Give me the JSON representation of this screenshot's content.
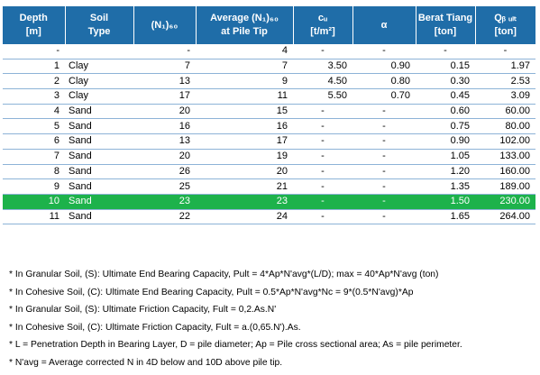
{
  "table": {
    "headers": [
      [
        "Depth",
        "[m]"
      ],
      [
        "Soil",
        "Type"
      ],
      [
        "(N₁)₆₀"
      ],
      [
        "Average (N₁)₆₀",
        "at Pile Tip"
      ],
      [
        "cᵤ",
        "[t/m²]"
      ],
      [
        "α"
      ],
      [
        "Berat Tiang",
        "[ton]"
      ],
      [
        "Qᵦ ᵤₗₜ",
        "[ton]"
      ]
    ],
    "rows": [
      [
        "-",
        "",
        "-",
        "4",
        "-",
        "-",
        "-",
        "-"
      ],
      [
        "1",
        "Clay",
        "7",
        "7",
        "3.50",
        "0.90",
        "0.15",
        "1.97"
      ],
      [
        "2",
        "Clay",
        "13",
        "9",
        "4.50",
        "0.80",
        "0.30",
        "2.53"
      ],
      [
        "3",
        "Clay",
        "17",
        "11",
        "5.50",
        "0.70",
        "0.45",
        "3.09"
      ],
      [
        "4",
        "Sand",
        "20",
        "15",
        "-",
        "-",
        "0.60",
        "60.00"
      ],
      [
        "5",
        "Sand",
        "16",
        "16",
        "-",
        "-",
        "0.75",
        "80.00"
      ],
      [
        "6",
        "Sand",
        "13",
        "17",
        "-",
        "-",
        "0.90",
        "102.00"
      ],
      [
        "7",
        "Sand",
        "20",
        "19",
        "-",
        "-",
        "1.05",
        "133.00"
      ],
      [
        "8",
        "Sand",
        "26",
        "20",
        "-",
        "-",
        "1.20",
        "160.00"
      ],
      [
        "9",
        "Sand",
        "25",
        "21",
        "-",
        "-",
        "1.35",
        "189.00"
      ],
      [
        "10",
        "Sand",
        "23",
        "23",
        "-",
        "-",
        "1.50",
        "230.00"
      ],
      [
        "11",
        "Sand",
        "22",
        "24",
        "-",
        "-",
        "1.65",
        "264.00"
      ]
    ],
    "highlight_row": 10,
    "highlight_color": "#1db24b",
    "header_color": "#1f6da8"
  },
  "notes": [
    "* In Granular Soil, (S): Ultimate End Bearing Capacity, Pult = 4*Ap*N'avg*(L/D); max = 40*Ap*N'avg (ton)",
    "* In Cohesive Soil, (C): Ultimate End Bearing Capacity, Pult = 0.5*Ap*N'avg*Nc = 9*(0.5*N'avg)*Ap",
    "* In Granular Soil, (S): Ultimate Friction Capacity, Fult = 0,2.As.N'",
    "* In Cohesive Soil, (C): Ultimate Friction Capacity, Fult = a.(0,65.N').As.",
    "* L = Penetration Depth in Bearing Layer,  D = pile diameter;   Ap = Pile cross sectional area; As = pile perimeter.",
    "* N'avg = Average corrected N in 4D below and 10D above pile tip."
  ]
}
